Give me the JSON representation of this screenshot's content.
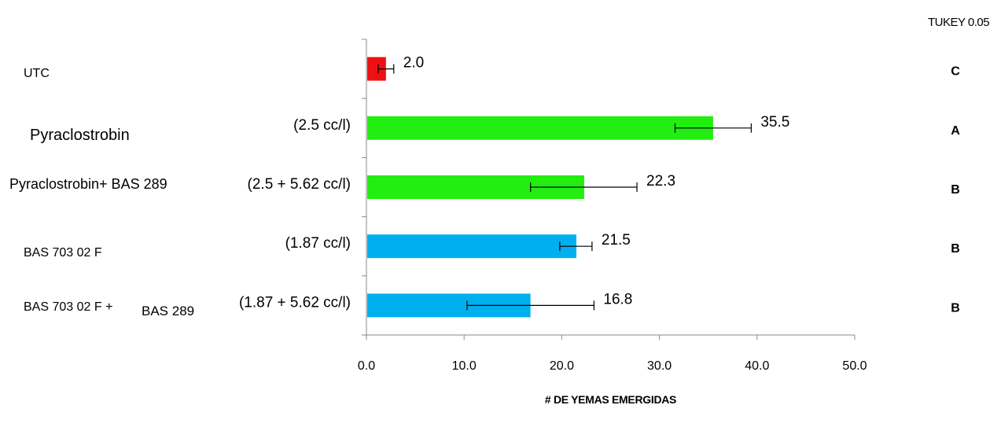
{
  "tukey_header": "TUKEY 0.05",
  "chart_data": {
    "type": "bar",
    "orientation": "horizontal",
    "xlabel": "# DE YEMAS EMERGIDAS",
    "xlim": [
      0,
      50
    ],
    "xticks": [
      "0.0",
      "10.0",
      "20.0",
      "30.0",
      "40.0",
      "50.0"
    ],
    "grid": false,
    "categories": [
      {
        "name": "UTC",
        "dose": "",
        "value": 2.0,
        "label": "2.0",
        "error_low": 1.2,
        "error_high": 2.8,
        "color": "#ee1111",
        "tukey": "C"
      },
      {
        "name": "Pyraclostrobin",
        "dose": "(2.5 cc/l)",
        "value": 35.5,
        "label": "35.5",
        "error_low": 31.6,
        "error_high": 39.4,
        "color": "#22ee11",
        "tukey": "A"
      },
      {
        "name": "Pyraclostrobin+ BAS 289",
        "dose": "(2.5 + 5.62 cc/l)",
        "value": 22.3,
        "label": "22.3",
        "error_low": 16.8,
        "error_high": 27.7,
        "color": "#22ee11",
        "tukey": "B"
      },
      {
        "name": "BAS 703 02 F",
        "dose": "(1.87 cc/l)",
        "value": 21.5,
        "label": "21.5",
        "error_low": 19.8,
        "error_high": 23.1,
        "color": "#00b0ee",
        "tukey": "B"
      },
      {
        "name": "BAS 703 02 F +",
        "name_suffix": "BAS 289",
        "dose": "(1.87 + 5.62 cc/l)",
        "value": 16.8,
        "label": "16.8",
        "error_low": 10.3,
        "error_high": 23.3,
        "color": "#00b0ee",
        "tukey": "B"
      }
    ]
  }
}
